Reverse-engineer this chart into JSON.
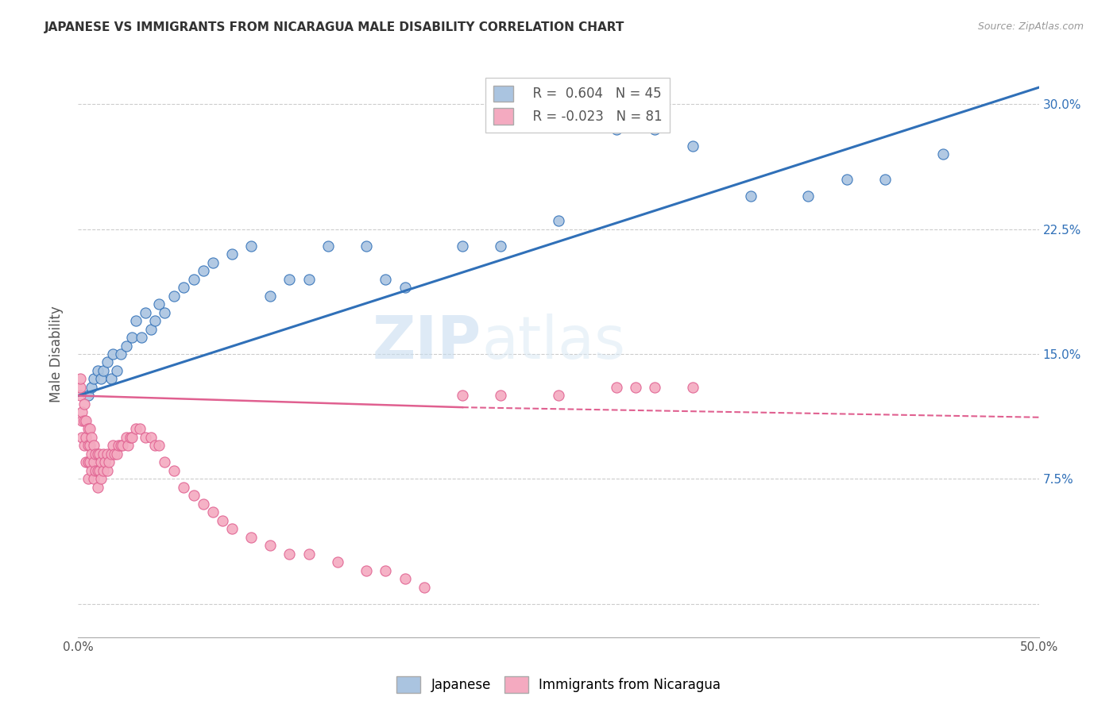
{
  "title": "JAPANESE VS IMMIGRANTS FROM NICARAGUA MALE DISABILITY CORRELATION CHART",
  "source": "Source: ZipAtlas.com",
  "ylabel": "Male Disability",
  "xlim": [
    0.0,
    0.5
  ],
  "ylim": [
    -0.02,
    0.32
  ],
  "xticks": [
    0.0,
    0.1,
    0.2,
    0.3,
    0.4,
    0.5
  ],
  "xtick_labels": [
    "0.0%",
    "",
    "",
    "",
    "",
    "50.0%"
  ],
  "yticks": [
    0.0,
    0.075,
    0.15,
    0.225,
    0.3
  ],
  "ytick_labels_right": [
    "",
    "7.5%",
    "15.0%",
    "22.5%",
    "30.0%"
  ],
  "blue_color": "#aac4e0",
  "pink_color": "#f4aac0",
  "blue_line_color": "#3070b8",
  "pink_line_color": "#e06090",
  "watermark_zip": "ZIP",
  "watermark_atlas": "atlas",
  "japanese_x": [
    0.005,
    0.007,
    0.008,
    0.01,
    0.012,
    0.013,
    0.015,
    0.017,
    0.018,
    0.02,
    0.022,
    0.025,
    0.028,
    0.03,
    0.033,
    0.035,
    0.038,
    0.04,
    0.042,
    0.045,
    0.05,
    0.055,
    0.06,
    0.065,
    0.07,
    0.08,
    0.09,
    0.1,
    0.11,
    0.12,
    0.13,
    0.15,
    0.16,
    0.17,
    0.2,
    0.22,
    0.25,
    0.28,
    0.3,
    0.32,
    0.35,
    0.38,
    0.4,
    0.42,
    0.45
  ],
  "japanese_y": [
    0.125,
    0.13,
    0.135,
    0.14,
    0.135,
    0.14,
    0.145,
    0.135,
    0.15,
    0.14,
    0.15,
    0.155,
    0.16,
    0.17,
    0.16,
    0.175,
    0.165,
    0.17,
    0.18,
    0.175,
    0.185,
    0.19,
    0.195,
    0.2,
    0.205,
    0.21,
    0.215,
    0.185,
    0.195,
    0.195,
    0.215,
    0.215,
    0.195,
    0.19,
    0.215,
    0.215,
    0.23,
    0.285,
    0.285,
    0.275,
    0.245,
    0.245,
    0.255,
    0.255,
    0.27
  ],
  "nicaragua_x": [
    0.001,
    0.001,
    0.001,
    0.002,
    0.002,
    0.002,
    0.003,
    0.003,
    0.003,
    0.004,
    0.004,
    0.004,
    0.005,
    0.005,
    0.005,
    0.005,
    0.006,
    0.006,
    0.006,
    0.007,
    0.007,
    0.007,
    0.008,
    0.008,
    0.008,
    0.009,
    0.009,
    0.01,
    0.01,
    0.01,
    0.011,
    0.011,
    0.012,
    0.012,
    0.013,
    0.013,
    0.014,
    0.015,
    0.015,
    0.016,
    0.017,
    0.018,
    0.019,
    0.02,
    0.021,
    0.022,
    0.023,
    0.025,
    0.026,
    0.027,
    0.028,
    0.03,
    0.032,
    0.035,
    0.038,
    0.04,
    0.042,
    0.045,
    0.05,
    0.055,
    0.06,
    0.065,
    0.07,
    0.075,
    0.08,
    0.09,
    0.1,
    0.11,
    0.12,
    0.135,
    0.15,
    0.16,
    0.17,
    0.18,
    0.2,
    0.22,
    0.25,
    0.28,
    0.29,
    0.3,
    0.32
  ],
  "nicaragua_y": [
    0.125,
    0.13,
    0.135,
    0.1,
    0.11,
    0.115,
    0.095,
    0.11,
    0.12,
    0.085,
    0.1,
    0.11,
    0.075,
    0.085,
    0.095,
    0.105,
    0.085,
    0.095,
    0.105,
    0.08,
    0.09,
    0.1,
    0.075,
    0.085,
    0.095,
    0.08,
    0.09,
    0.07,
    0.08,
    0.09,
    0.08,
    0.09,
    0.075,
    0.085,
    0.08,
    0.09,
    0.085,
    0.08,
    0.09,
    0.085,
    0.09,
    0.095,
    0.09,
    0.09,
    0.095,
    0.095,
    0.095,
    0.1,
    0.095,
    0.1,
    0.1,
    0.105,
    0.105,
    0.1,
    0.1,
    0.095,
    0.095,
    0.085,
    0.08,
    0.07,
    0.065,
    0.06,
    0.055,
    0.05,
    0.045,
    0.04,
    0.035,
    0.03,
    0.03,
    0.025,
    0.02,
    0.02,
    0.015,
    0.01,
    0.125,
    0.125,
    0.125,
    0.13,
    0.13,
    0.13,
    0.13
  ]
}
